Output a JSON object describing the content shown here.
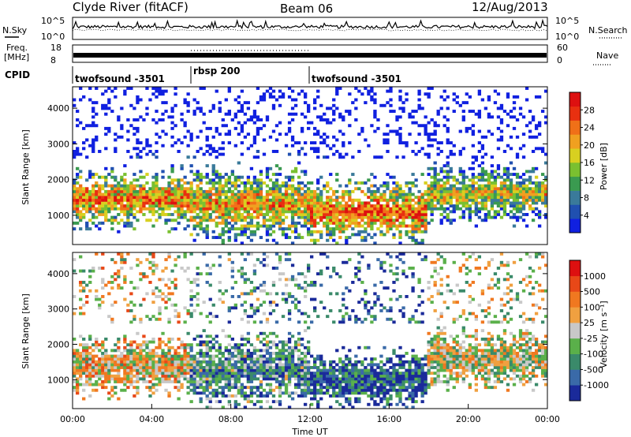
{
  "header": {
    "station": "Clyde River (fitACF)",
    "beam": "Beam 06",
    "date": "12/Aug/2013"
  },
  "nsky_panel": {
    "left_label": "N.Sky",
    "right_label": "N.Search",
    "left_ticks": [
      "10^5",
      "10^0"
    ],
    "right_ticks": [
      "10^5",
      "10^0"
    ]
  },
  "freq_panel": {
    "left_label_line1": "Freq.",
    "left_label_line2": "[MHz]",
    "right_label": "Nave",
    "left_ticks": [
      "18",
      "8"
    ],
    "right_ticks": [
      "60",
      "0"
    ]
  },
  "cpid": {
    "label": "CPID",
    "segments": [
      {
        "name": "twofsound -3501",
        "start_hour": 0,
        "end_hour": 6
      },
      {
        "name": "rbsp 200",
        "start_hour": 6,
        "end_hour": 12
      },
      {
        "name": "twofsound -3501",
        "start_hour": 12,
        "end_hour": 24
      }
    ]
  },
  "chart_data": [
    {
      "type": "heatmap",
      "title": "",
      "xlabel": "",
      "ylabel": "Slant Range [km]",
      "xlim": [
        0,
        24
      ],
      "ylim": [
        180,
        4600
      ],
      "yticks": [
        "1000",
        "2000",
        "3000",
        "4000"
      ],
      "colorbar": {
        "label": "Power [dB]",
        "ticks": [
          "4",
          "8",
          "12",
          "16",
          "20",
          "24",
          "28"
        ],
        "colors": [
          "#1020e0",
          "#2050b0",
          "#3a7a9a",
          "#3a9a50",
          "#7ac030",
          "#d8d020",
          "#f0a020",
          "#f07018",
          "#e83010",
          "#dd1010"
        ]
      },
      "bands": [
        {
          "t_start": 0.0,
          "t_end": 6.0,
          "r_center": 1450,
          "r_width": 900,
          "level": 0.75
        },
        {
          "t_start": 6.0,
          "t_end": 12.0,
          "r_center": 1300,
          "r_width": 1100,
          "level": 0.7
        },
        {
          "t_start": 12.0,
          "t_end": 18.0,
          "r_center": 1100,
          "r_width": 1000,
          "level": 0.8
        },
        {
          "t_start": 18.0,
          "t_end": 24.0,
          "r_center": 1600,
          "r_width": 900,
          "level": 0.6
        }
      ]
    },
    {
      "type": "heatmap",
      "title": "",
      "xlabel": "Time UT",
      "ylabel": "Slant Range [km]",
      "xlim": [
        0,
        24
      ],
      "ylim": [
        180,
        4600
      ],
      "xticks": [
        "00:00",
        "04:00",
        "08:00",
        "12:00",
        "16:00",
        "20:00",
        "00:00"
      ],
      "yticks": [
        "1000",
        "2000",
        "3000",
        "4000"
      ],
      "colorbar": {
        "label": "Velocity [m s⁻¹]",
        "ticks": [
          "1000",
          "500",
          "100",
          "25",
          "-25",
          "-100",
          "-500",
          "-1000"
        ],
        "colors": [
          "#1a2a9a",
          "#3a6aa8",
          "#3a8a6a",
          "#5ab04a",
          "#c8c8c8",
          "#f0a040",
          "#f07820",
          "#e84818",
          "#dd1010"
        ]
      },
      "bands": [
        {
          "t_start": 0.0,
          "t_end": 6.0,
          "r_center": 1400,
          "r_width": 900,
          "level": 0.55
        },
        {
          "t_start": 6.0,
          "t_end": 12.0,
          "r_center": 1300,
          "r_width": 1100,
          "level": 0.3
        },
        {
          "t_start": 12.0,
          "t_end": 18.0,
          "r_center": 1000,
          "r_width": 900,
          "level": 0.15
        },
        {
          "t_start": 18.0,
          "t_end": 24.0,
          "r_center": 1600,
          "r_width": 900,
          "level": 0.5
        }
      ]
    }
  ]
}
